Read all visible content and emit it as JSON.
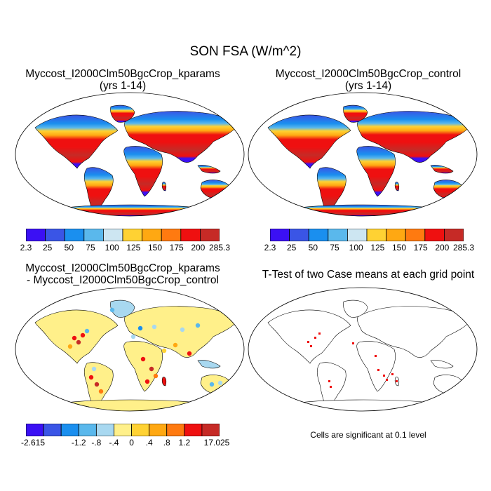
{
  "title": "SON FSA (W/m^2)",
  "panels": [
    {
      "title_line1": "Myccost_I2000Clm50BgcCrop_kparams",
      "title_line2": "(yrs 1-14)"
    },
    {
      "title_line1": "Myccost_I2000Clm50BgcCrop_control",
      "title_line2": "(yrs 1-14)"
    },
    {
      "title_line1": "Myccost_I2000Clm50BgcCrop_kparams",
      "title_line2": "- Myccost_I2000Clm50BgcCrop_control"
    },
    {
      "title_line1": "T-Test of two Case means at each grid point",
      "title_line2": ""
    }
  ],
  "colorbar_abs": {
    "colors": [
      "#3b10f4",
      "#3a55e6",
      "#1a8fef",
      "#5ab8ec",
      "#cde6f2",
      "#ffd233",
      "#ffa812",
      "#ff7a10",
      "#ef1010",
      "#c62a26"
    ],
    "labels": [
      "2.3",
      "25",
      "50",
      "75",
      "100",
      "125",
      "150",
      "175",
      "200",
      "285.3"
    ]
  },
  "colorbar_diff": {
    "colors": [
      "#3b10f4",
      "#3a55e6",
      "#1a8fef",
      "#5ab8ec",
      "#a8d8f0",
      "#fff08a",
      "#ffd233",
      "#ffa812",
      "#ff7a10",
      "#ef1010",
      "#c62a26"
    ],
    "labels": [
      "-2.615",
      "-1.2",
      "-.8",
      "-.4",
      "0",
      ".4",
      ".8",
      "1.2",
      "17.025"
    ]
  },
  "sig_note": "Cells are significant at 0.1 level"
}
